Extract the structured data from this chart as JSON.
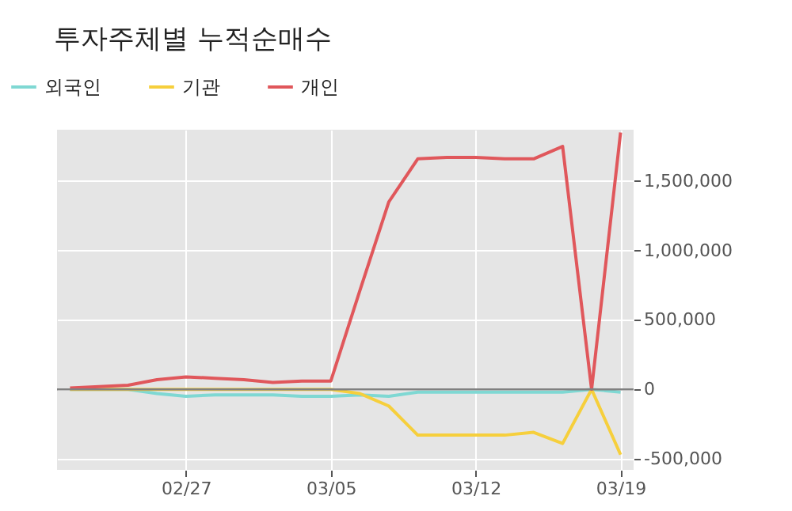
{
  "chart_data": {
    "type": "line",
    "title": "투자주체별 누적순매수",
    "categories": [
      null,
      null,
      null,
      null,
      "02/27",
      null,
      null,
      null,
      null,
      "03/05",
      null,
      null,
      null,
      null,
      "03/12",
      null,
      null,
      null,
      null,
      "03/19"
    ],
    "series": [
      {
        "name": "외국인",
        "color": "#7fd8d3",
        "values": [
          0,
          0,
          0,
          -30000,
          -50000,
          -40000,
          -40000,
          -40000,
          -50000,
          -50000,
          -40000,
          -50000,
          -20000,
          -20000,
          -20000,
          -20000,
          -20000,
          -20000,
          0,
          -20000
        ]
      },
      {
        "name": "기관",
        "color": "#f6cf3c",
        "values": [
          0,
          0,
          0,
          0,
          0,
          0,
          0,
          0,
          0,
          0,
          -30000,
          -120000,
          -330000,
          -330000,
          -330000,
          -330000,
          -310000,
          -390000,
          0,
          -470000
        ]
      },
      {
        "name": "개인",
        "color": "#e0575b",
        "values": [
          10000,
          20000,
          30000,
          70000,
          90000,
          80000,
          70000,
          50000,
          60000,
          60000,
          710000,
          1350000,
          1660000,
          1670000,
          1670000,
          1660000,
          1660000,
          1750000,
          0,
          1850000
        ]
      }
    ],
    "ylim": [
      -580000,
      1870000
    ],
    "yticks": [
      {
        "value": -500000,
        "label": "-500,000"
      },
      {
        "value": 0,
        "label": "0"
      },
      {
        "value": 500000,
        "label": "500,000"
      },
      {
        "value": 1000000,
        "label": "1,000,000"
      },
      {
        "value": 1500000,
        "label": "1,500,000"
      }
    ],
    "ref_lines": [
      {
        "axis": "y",
        "value": 0,
        "color": "#808080"
      }
    ],
    "grid": true,
    "legend": "top left",
    "line_style": "solid"
  }
}
